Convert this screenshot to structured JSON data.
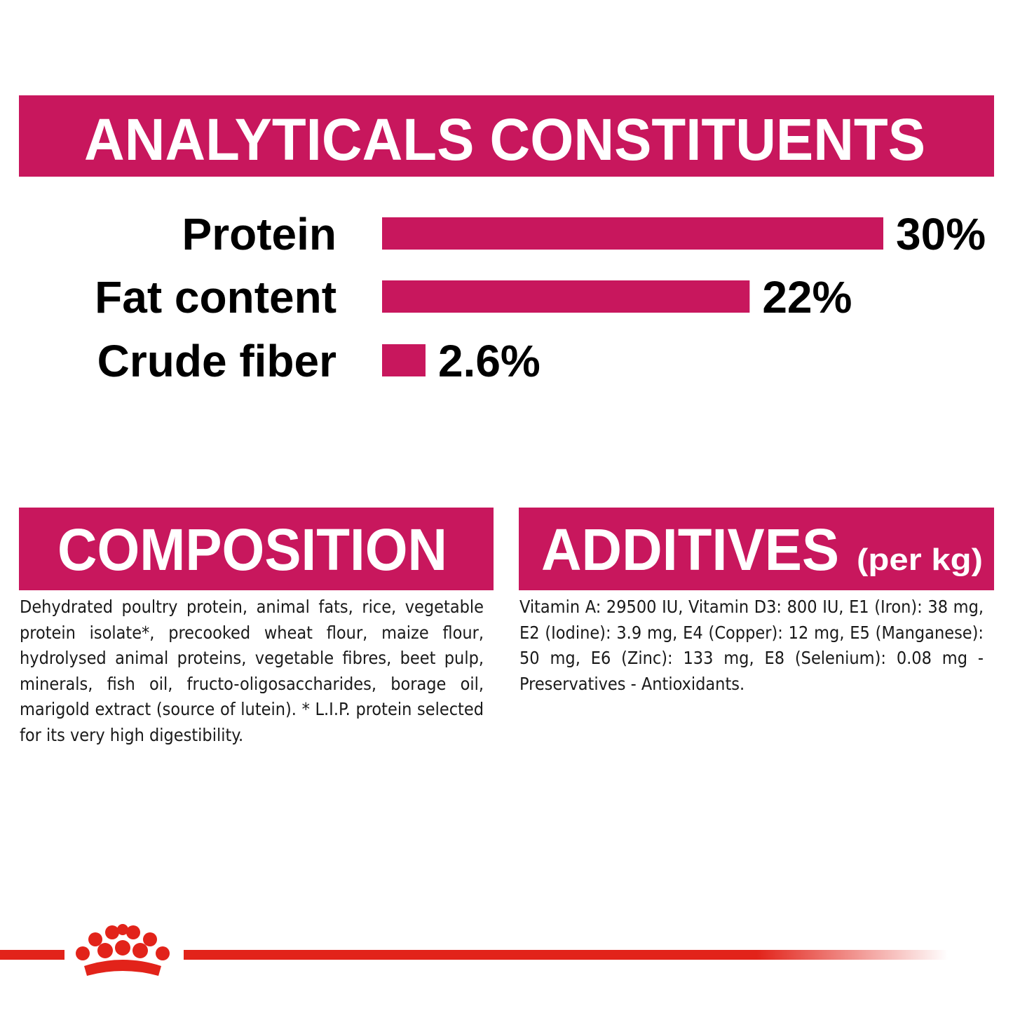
{
  "chart_data": {
    "type": "bar",
    "orientation": "horizontal",
    "title": "ANALYTICALS CONSTITUENTS",
    "categories": [
      "Protein",
      "Fat content",
      "Crude fiber"
    ],
    "values": [
      30,
      22,
      2.6
    ],
    "value_labels": [
      "30%",
      "22%",
      "2.6%"
    ],
    "xlim": [
      0,
      30
    ],
    "color": "#c8175d"
  },
  "composition": {
    "title": "COMPOSITION",
    "text": "Dehydrated poultry protein, animal fats, rice, vegetable protein isolate*, precooked wheat flour, maize flour, hydrolysed animal proteins, vegetable fibres, beet pulp, minerals, fish oil, fructo-oligosaccharides, borage oil, marigold extract (source of lutein). * L.I.P. protein selected for its very high digestibility."
  },
  "additives": {
    "title": "ADDITIVES",
    "subtitle": "(per kg)",
    "text": "Vitamin A: 29500 IU, Vitamin D3: 800 IU, E1 (Iron): 38 mg, E2 (Iodine): 3.9 mg, E4 (Copper): 12 mg, E5 (Manganese): 50 mg, E6 (Zinc): 133 mg, E8 (Selenium): 0.08 mg - Preservatives - Antioxidants."
  }
}
